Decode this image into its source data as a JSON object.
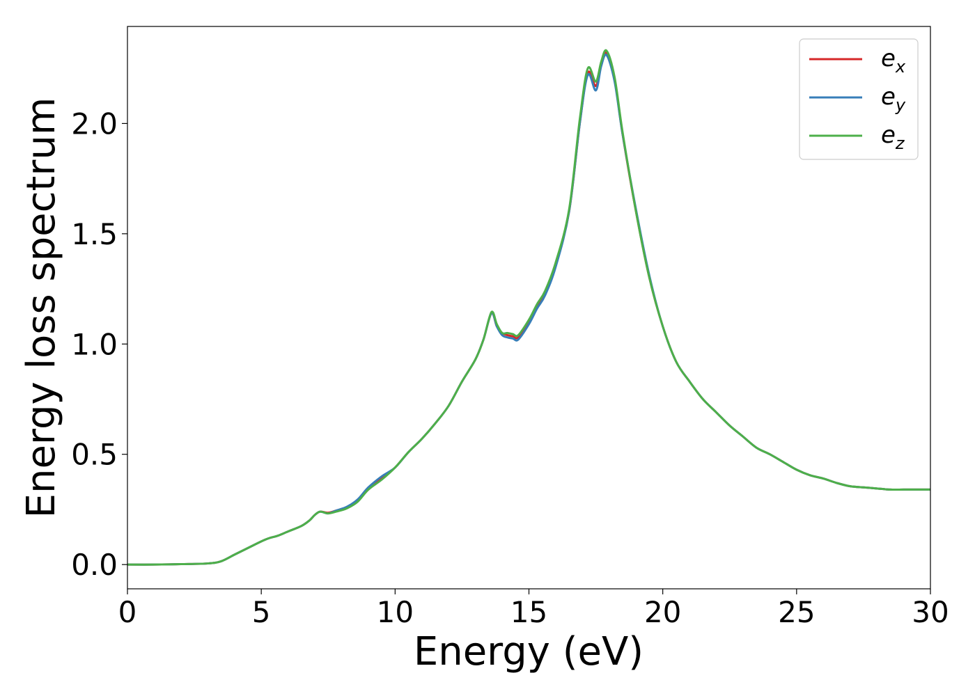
{
  "chart_data": {
    "type": "line",
    "title": "",
    "xlabel": "Energy (eV)",
    "ylabel": "Energy loss spectrum",
    "xlim": [
      0,
      30
    ],
    "ylim": [
      -0.11,
      2.44
    ],
    "xticks": [
      0,
      5,
      10,
      15,
      20,
      25,
      30
    ],
    "xtick_labels": [
      "0",
      "5",
      "10",
      "15",
      "20",
      "25",
      "30"
    ],
    "yticks": [
      0.0,
      0.5,
      1.0,
      1.5,
      2.0
    ],
    "ytick_labels": [
      "0.0",
      "0.5",
      "1.0",
      "1.5",
      "2.0"
    ],
    "grid": false,
    "legend_position": "top-right",
    "x": [
      0,
      1,
      2,
      3,
      3.5,
      4,
      4.5,
      5,
      5.3,
      5.6,
      6,
      6.5,
      6.8,
      7.0,
      7.2,
      7.5,
      7.8,
      8.2,
      8.6,
      9.0,
      9.5,
      10,
      10.5,
      11,
      11.5,
      12,
      12.5,
      13,
      13.3,
      13.6,
      13.8,
      14.0,
      14.2,
      14.4,
      14.6,
      15.0,
      15.3,
      15.6,
      16.0,
      16.5,
      16.9,
      17.2,
      17.5,
      17.7,
      17.9,
      18.2,
      18.5,
      19.0,
      19.5,
      20.0,
      20.5,
      21.0,
      21.5,
      22.0,
      22.5,
      23.0,
      23.5,
      24.0,
      24.5,
      25.0,
      25.5,
      26.0,
      26.5,
      27.0,
      27.5,
      28.0,
      28.5,
      29.0,
      29.5,
      30.0
    ],
    "series": [
      {
        "name": "e",
        "subscript": "x",
        "color": "#d62728",
        "values": [
          0.0,
          0.0,
          0.002,
          0.005,
          0.015,
          0.045,
          0.075,
          0.105,
          0.12,
          0.13,
          0.15,
          0.175,
          0.2,
          0.225,
          0.24,
          0.235,
          0.245,
          0.26,
          0.29,
          0.34,
          0.39,
          0.44,
          0.51,
          0.57,
          0.64,
          0.72,
          0.83,
          0.93,
          1.02,
          1.14,
          1.08,
          1.05,
          1.04,
          1.035,
          1.03,
          1.1,
          1.17,
          1.23,
          1.36,
          1.6,
          2.0,
          2.23,
          2.17,
          2.27,
          2.32,
          2.2,
          1.95,
          1.6,
          1.3,
          1.08,
          0.92,
          0.83,
          0.75,
          0.69,
          0.63,
          0.58,
          0.53,
          0.5,
          0.465,
          0.43,
          0.405,
          0.39,
          0.37,
          0.355,
          0.35,
          0.345,
          0.34,
          0.34,
          0.34,
          0.34
        ]
      },
      {
        "name": "e",
        "subscript": "y",
        "color": "#377eb8",
        "values": [
          0.0,
          0.0,
          0.002,
          0.005,
          0.015,
          0.045,
          0.075,
          0.105,
          0.12,
          0.13,
          0.15,
          0.175,
          0.2,
          0.225,
          0.24,
          0.232,
          0.245,
          0.262,
          0.295,
          0.35,
          0.4,
          0.44,
          0.51,
          0.57,
          0.64,
          0.72,
          0.83,
          0.93,
          1.02,
          1.14,
          1.08,
          1.04,
          1.03,
          1.025,
          1.02,
          1.09,
          1.16,
          1.22,
          1.35,
          1.6,
          2.0,
          2.22,
          2.15,
          2.26,
          2.31,
          2.19,
          1.95,
          1.61,
          1.31,
          1.08,
          0.92,
          0.83,
          0.75,
          0.69,
          0.63,
          0.58,
          0.53,
          0.5,
          0.465,
          0.43,
          0.405,
          0.39,
          0.37,
          0.355,
          0.35,
          0.345,
          0.34,
          0.34,
          0.34,
          0.34
        ]
      },
      {
        "name": "e",
        "subscript": "z",
        "color": "#4daf4a",
        "values": [
          0.0,
          0.0,
          0.002,
          0.005,
          0.015,
          0.045,
          0.075,
          0.105,
          0.12,
          0.13,
          0.15,
          0.175,
          0.2,
          0.225,
          0.24,
          0.232,
          0.24,
          0.255,
          0.285,
          0.34,
          0.385,
          0.44,
          0.51,
          0.57,
          0.64,
          0.72,
          0.83,
          0.93,
          1.02,
          1.145,
          1.09,
          1.05,
          1.05,
          1.045,
          1.04,
          1.11,
          1.18,
          1.24,
          1.37,
          1.61,
          2.02,
          2.25,
          2.19,
          2.28,
          2.33,
          2.21,
          1.96,
          1.6,
          1.3,
          1.08,
          0.92,
          0.83,
          0.75,
          0.69,
          0.63,
          0.58,
          0.53,
          0.5,
          0.465,
          0.43,
          0.405,
          0.39,
          0.37,
          0.355,
          0.35,
          0.345,
          0.34,
          0.34,
          0.34,
          0.34
        ]
      }
    ]
  }
}
